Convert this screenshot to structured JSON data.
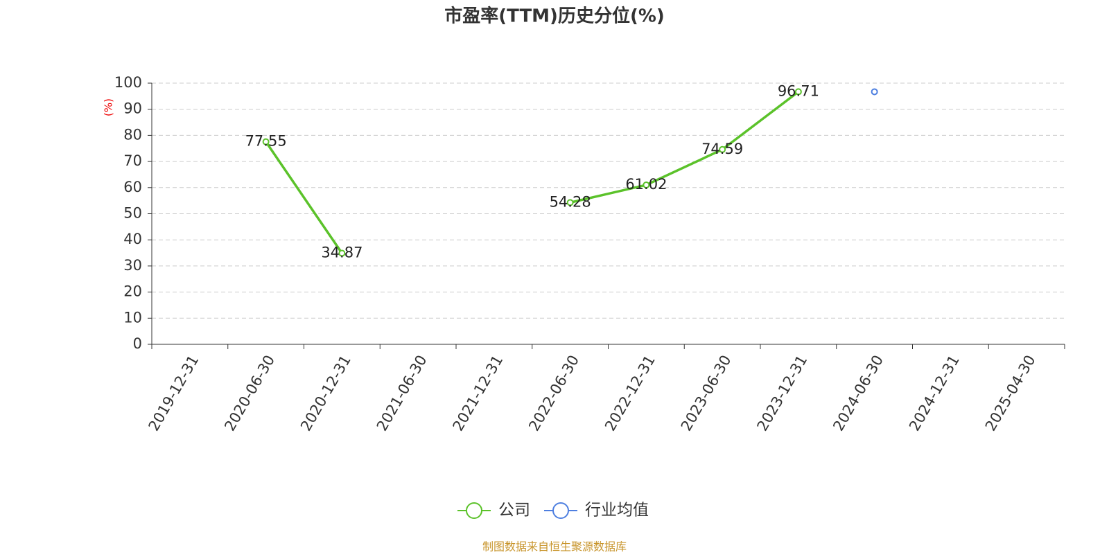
{
  "chart_data": {
    "type": "line",
    "title": "市盈率(TTM)历史分位(%)",
    "y_label": "(%)",
    "categories": [
      "2019-12-31",
      "2020-06-30",
      "2020-12-31",
      "2021-06-30",
      "2021-12-31",
      "2022-06-30",
      "2022-12-31",
      "2023-06-30",
      "2023-12-31",
      "2024-06-30",
      "2024-12-31",
      "2025-04-30"
    ],
    "series": [
      {
        "name": "公司",
        "color": "#5bc22a",
        "values": [
          null,
          77.55,
          34.87,
          null,
          null,
          54.28,
          61.02,
          74.59,
          96.71,
          null,
          null,
          null
        ],
        "labels": true
      },
      {
        "name": "行业均值",
        "color": "#4e7fe0",
        "values": [
          null,
          null,
          null,
          null,
          null,
          null,
          null,
          null,
          null,
          96.7,
          null,
          null
        ],
        "labels": false
      }
    ],
    "ylim": [
      0,
      100
    ],
    "yticks": [
      0,
      10,
      20,
      30,
      40,
      50,
      60,
      70,
      80,
      90,
      100
    ],
    "grid": true,
    "source": "制图数据来自恒生聚源数据库"
  }
}
